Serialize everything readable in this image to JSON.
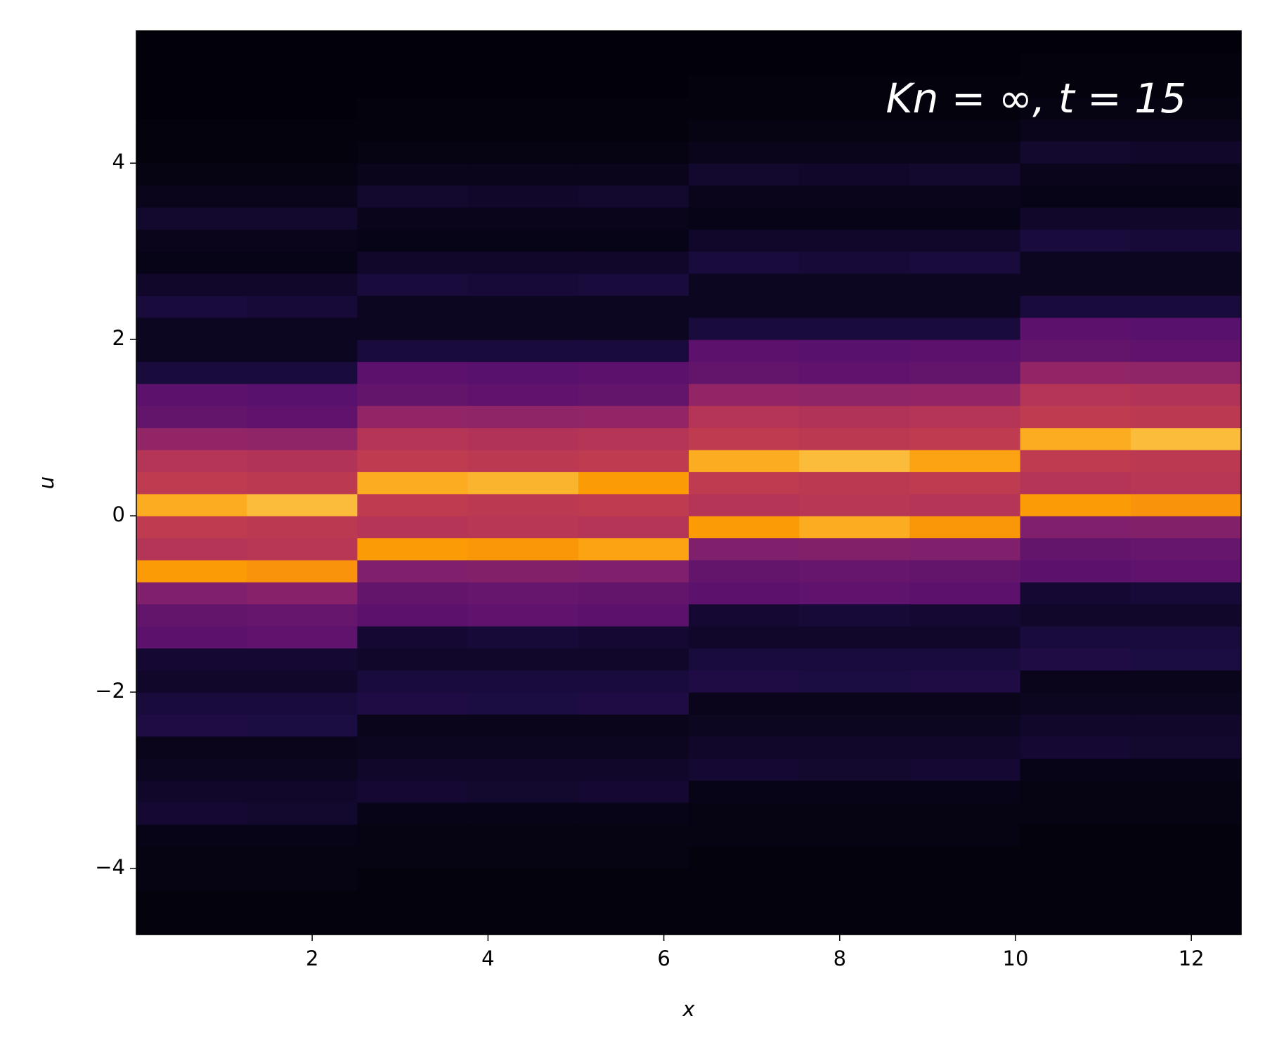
{
  "chart_data": {
    "type": "heatmap",
    "colormap": "inferno",
    "annotation": "Kn = ∞, t = 15",
    "x_label": "x",
    "y_label": "u",
    "xlim": [
      0,
      12.566
    ],
    "ylim": [
      -4.75,
      5.5
    ],
    "xticks": [
      2,
      4,
      6,
      8,
      10,
      12
    ],
    "yticks": [
      {
        "value": -4,
        "label": "−4"
      },
      {
        "value": -2,
        "label": "−2"
      },
      0,
      2,
      4
    ],
    "zlim": [
      0,
      100
    ],
    "x_edges": [
      0,
      1.257,
      2.513,
      3.77,
      5.027,
      6.283,
      7.54,
      8.796,
      10.053,
      11.31,
      12.566
    ],
    "y_edges": [
      -4.75,
      -4.5,
      -4.25,
      -4,
      -3.75,
      -3.5,
      -3.25,
      -3,
      -2.75,
      -2.5,
      -2.25,
      -2,
      -1.75,
      -1.5,
      -1.25,
      -1,
      -0.75,
      -0.5,
      -0.25,
      0,
      0.25,
      0.5,
      0.75,
      1,
      1.25,
      1.5,
      1.75,
      2,
      2.25,
      2.5,
      2.75,
      3,
      3.25,
      3.5,
      3.75,
      4,
      4.25,
      4.5,
      4.75,
      5,
      5.25,
      5.5
    ],
    "z": [
      [
        2,
        2,
        3,
        3,
        4,
        10,
        8,
        6,
        5,
        14,
        12,
        8,
        10,
        30,
        32,
        40,
        88,
        55,
        58,
        90,
        58,
        55,
        45,
        32,
        30,
        12,
        6,
        6,
        12,
        8,
        4,
        5,
        9,
        5,
        3,
        2,
        2,
        1,
        1,
        1,
        1
      ],
      [
        2,
        2,
        3,
        3,
        4,
        9,
        8,
        6,
        5,
        13,
        12,
        8,
        10,
        31,
        33,
        42,
        86,
        56,
        57,
        92,
        57,
        54,
        44,
        31,
        29,
        12,
        6,
        6,
        11,
        8,
        4,
        5,
        9,
        5,
        3,
        2,
        2,
        1,
        1,
        1,
        1
      ],
      [
        2,
        2,
        2,
        3,
        3,
        4,
        10,
        8,
        6,
        5,
        14,
        12,
        8,
        10,
        30,
        32,
        40,
        88,
        55,
        58,
        90,
        58,
        55,
        45,
        32,
        30,
        12,
        6,
        6,
        12,
        8,
        4,
        5,
        9,
        5,
        3,
        2,
        2,
        1,
        1,
        1
      ],
      [
        2,
        2,
        2,
        3,
        3,
        4,
        9,
        8,
        6,
        5,
        13,
        12,
        8,
        11,
        31,
        33,
        41,
        87,
        56,
        57,
        91,
        57,
        54,
        44,
        31,
        29,
        12,
        6,
        6,
        11,
        8,
        4,
        5,
        8,
        5,
        3,
        2,
        2,
        1,
        1,
        1
      ],
      [
        2,
        2,
        2,
        3,
        3,
        4,
        10,
        8,
        6,
        5,
        14,
        12,
        8,
        10,
        30,
        32,
        40,
        89,
        55,
        58,
        88,
        58,
        55,
        45,
        32,
        30,
        12,
        6,
        6,
        12,
        8,
        4,
        5,
        9,
        5,
        3,
        2,
        2,
        1,
        1,
        1
      ],
      [
        2,
        2,
        2,
        2,
        3,
        3,
        4,
        10,
        8,
        6,
        5,
        14,
        12,
        8,
        10,
        30,
        32,
        40,
        88,
        55,
        58,
        90,
        58,
        55,
        45,
        32,
        30,
        12,
        6,
        6,
        12,
        8,
        4,
        5,
        9,
        5,
        3,
        2,
        2,
        1,
        1
      ],
      [
        2,
        2,
        2,
        2,
        3,
        3,
        4,
        9,
        8,
        6,
        5,
        13,
        12,
        8,
        11,
        31,
        33,
        41,
        90,
        56,
        57,
        92,
        57,
        54,
        44,
        31,
        29,
        12,
        6,
        6,
        11,
        8,
        4,
        5,
        8,
        5,
        3,
        2,
        2,
        1,
        1
      ],
      [
        2,
        2,
        2,
        2,
        3,
        3,
        4,
        10,
        8,
        6,
        5,
        14,
        12,
        8,
        10,
        30,
        32,
        40,
        87,
        55,
        58,
        89,
        58,
        55,
        45,
        32,
        30,
        12,
        6,
        6,
        12,
        8,
        4,
        5,
        9,
        5,
        3,
        2,
        2,
        1,
        1
      ],
      [
        2,
        2,
        2,
        2,
        2,
        3,
        3,
        4,
        10,
        8,
        6,
        5,
        14,
        12,
        8,
        10,
        30,
        32,
        40,
        88,
        55,
        58,
        90,
        58,
        55,
        45,
        32,
        30,
        12,
        6,
        6,
        12,
        8,
        4,
        5,
        9,
        5,
        3,
        2,
        2,
        1
      ],
      [
        2,
        2,
        2,
        2,
        2,
        3,
        3,
        4,
        9,
        8,
        6,
        5,
        13,
        12,
        8,
        11,
        31,
        33,
        41,
        86,
        56,
        57,
        92,
        57,
        54,
        44,
        31,
        29,
        12,
        6,
        6,
        11,
        8,
        4,
        5,
        8,
        5,
        3,
        2,
        2,
        1
      ]
    ]
  }
}
